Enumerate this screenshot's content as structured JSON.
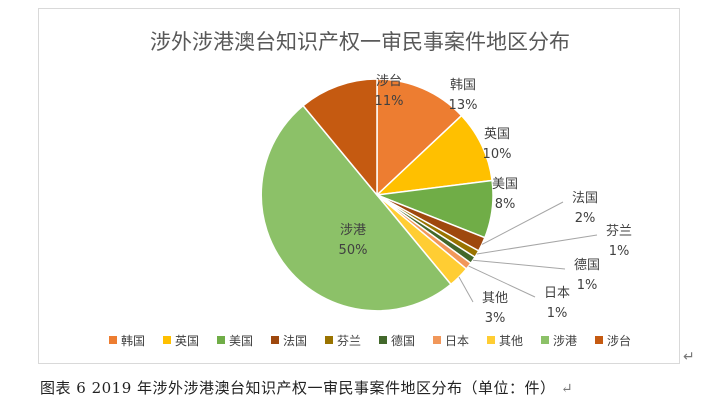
{
  "chart_data": {
    "type": "pie",
    "title": "涉外涉港澳台知识产权一审民事案件地区分布",
    "categories": [
      "韩国",
      "英国",
      "美国",
      "法国",
      "芬兰",
      "德国",
      "日本",
      "其他",
      "涉港",
      "涉台"
    ],
    "values": [
      13,
      10,
      8,
      2,
      1,
      1,
      1,
      3,
      50,
      11
    ],
    "value_labels": [
      "13%",
      "10%",
      "8%",
      "2%",
      "1%",
      "1%",
      "1%",
      "3%",
      "50%",
      "11%"
    ],
    "colors": [
      "#ED7D31",
      "#FFC000",
      "#70AD47",
      "#9E480E",
      "#997300",
      "#43682B",
      "#F1975A",
      "#FFCD33",
      "#8CC168",
      "#C55A11"
    ],
    "legend_position": "bottom",
    "start_angle_deg": 0,
    "direction": "clockwise"
  },
  "caption": {
    "text": "图表 6   2019 年涉外涉港澳台知识产权一审民事案件地区分布（单位：件）",
    "paragraph_mark": "↵"
  }
}
